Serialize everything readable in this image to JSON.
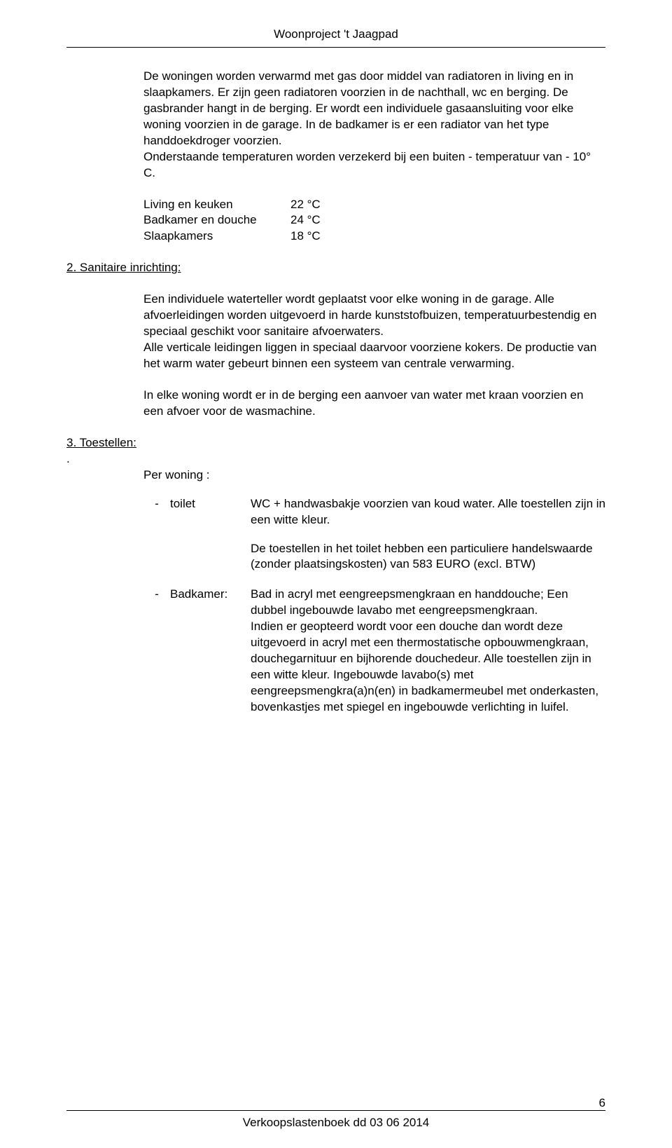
{
  "header": {
    "title": "Woonproject 't Jaagpad"
  },
  "intro": {
    "text": "De woningen worden verwarmd met gas door middel van radiatoren in living en in slaapkamers. Er zijn geen radiatoren voorzien in de nachthall, wc en berging. De gasbrander hangt in de berging. Er wordt een individuele gasaansluiting voor elke woning voorzien in de garage. In de badkamer is er een radiator van het type handdoekdroger voorzien.",
    "text2": "Onderstaande temperaturen worden verzekerd bij een buiten - temperatuur van - 10° C."
  },
  "temps": {
    "rows": [
      {
        "label": "Living en keuken",
        "value": "22 °C"
      },
      {
        "label": "Badkamer en douche",
        "value": "24 °C"
      },
      {
        "label": "Slaapkamers",
        "value": "18 °C"
      }
    ]
  },
  "section2": {
    "heading": "2. Sanitaire inrichting:",
    "para1": "Een individuele waterteller wordt geplaatst voor elke woning in de garage. Alle afvoerleidingen worden uitgevoerd in harde kunststofbuizen, temperatuurbestendig en speciaal geschikt voor sanitaire afvoerwaters.",
    "para1b": "Alle verticale leidingen liggen in speciaal daarvoor voorziene kokers. De productie van het warm water gebeurt binnen een systeem van centrale verwarming.",
    "para2": "In elke woning wordt er in de berging een aanvoer van water met kraan voorzien en een afvoer voor de wasmachine."
  },
  "section3": {
    "heading": "3. Toestellen:",
    "dot": ".",
    "per_woning": "Per woning :",
    "items": [
      {
        "bullet": "-",
        "label": "toilet",
        "text1": "WC + handwasbakje voorzien van koud water. Alle toestellen zijn in een witte kleur.",
        "text2": "De toestellen in het toilet hebben een particuliere handelswaarde (zonder plaatsingskosten) van 583 EURO (excl. BTW)"
      },
      {
        "bullet": "-",
        "label": "Badkamer:",
        "text1": "Bad in acryl met eengreepsmengkraan en handdouche;  Een dubbel ingebouwde lavabo met eengreepsmengkraan.",
        "text1b": "Indien er geopteerd wordt voor een douche dan wordt deze uitgevoerd in acryl met een thermostatische opbouwmengkraan, douchegarnituur en bijhorende douchedeur. Alle toestellen zijn in een witte kleur. Ingebouwde lavabo(s) met eengreepsmengkra(a)n(en) in badkamermeubel met onderkasten, bovenkastjes met spiegel en ingebouwde verlichting in luifel."
      }
    ]
  },
  "footer": {
    "text": "Verkoopslastenboek dd 03 06 2014",
    "page": "6"
  }
}
